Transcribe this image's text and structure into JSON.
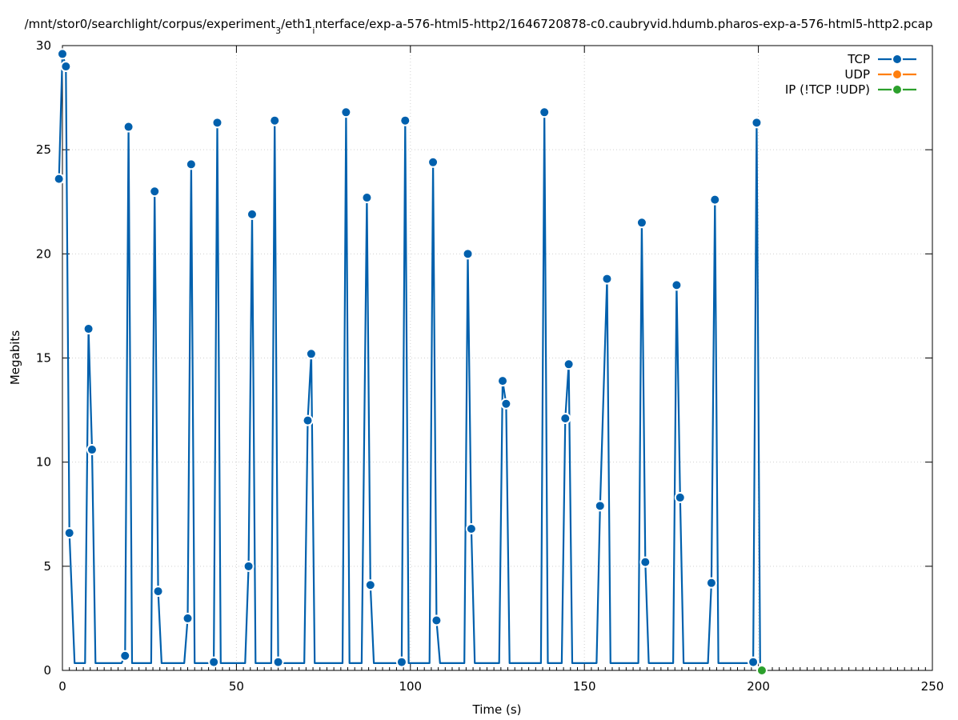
{
  "chart_data": {
    "type": "line",
    "title_parts": [
      "/mnt/stor0/searchlight/corpus/experiment",
      "3",
      "/eth1",
      "i",
      "nterface/exp-a-576-html5-http2/1646720878-c0.caubryvid.hdumb.pharos-exp-a-576-html5-http2.pcap"
    ],
    "xlabel": "Time (s)",
    "ylabel": "Megabits",
    "xlim": [
      0,
      250
    ],
    "ylim": [
      0,
      30
    ],
    "xticks": [
      0,
      50,
      100,
      150,
      200,
      250
    ],
    "yticks": [
      0,
      5,
      10,
      15,
      20,
      25,
      30
    ],
    "grid": true,
    "legend_position": "top-right",
    "series": [
      {
        "name": "TCP",
        "color": "#0060ad",
        "points": [
          [
            -1,
            23.6
          ],
          [
            0,
            29.6
          ],
          [
            1,
            29.0
          ],
          [
            2,
            6.6
          ],
          [
            3.5,
            0.35
          ],
          [
            6.5,
            0.35
          ],
          [
            7.5,
            16.4
          ],
          [
            8.5,
            10.6
          ],
          [
            9.5,
            0.35
          ],
          [
            17,
            0.35
          ],
          [
            18,
            0.7
          ],
          [
            19,
            26.1
          ],
          [
            20,
            0.35
          ],
          [
            25.5,
            0.35
          ],
          [
            26.5,
            23.0
          ],
          [
            27.5,
            3.8
          ],
          [
            28.5,
            0.35
          ],
          [
            35,
            0.35
          ],
          [
            36,
            2.5
          ],
          [
            37,
            24.3
          ],
          [
            38,
            0.35
          ],
          [
            42.5,
            0.35
          ],
          [
            43.5,
            0.4
          ],
          [
            44.5,
            26.3
          ],
          [
            45.5,
            0.35
          ],
          [
            52.5,
            0.35
          ],
          [
            53.5,
            5.0
          ],
          [
            54.5,
            21.9
          ],
          [
            55.5,
            0.35
          ],
          [
            60,
            0.35
          ],
          [
            61,
            26.4
          ],
          [
            62,
            0.4
          ],
          [
            63,
            0.35
          ],
          [
            69.5,
            0.35
          ],
          [
            70.5,
            12.0
          ],
          [
            71.5,
            15.2
          ],
          [
            72.5,
            0.35
          ],
          [
            80.5,
            0.35
          ],
          [
            81.5,
            26.8
          ],
          [
            82.5,
            0.35
          ],
          [
            86,
            0.35
          ],
          [
            87.5,
            22.7
          ],
          [
            88.5,
            4.1
          ],
          [
            89.5,
            0.35
          ],
          [
            96.5,
            0.35
          ],
          [
            97.5,
            0.4
          ],
          [
            98.5,
            26.4
          ],
          [
            99.5,
            0.35
          ],
          [
            105.5,
            0.35
          ],
          [
            106.5,
            24.4
          ],
          [
            107.5,
            2.4
          ],
          [
            108.5,
            0.35
          ],
          [
            115.5,
            0.35
          ],
          [
            116.5,
            20.0
          ],
          [
            117.5,
            6.8
          ],
          [
            118.5,
            0.35
          ],
          [
            125.5,
            0.35
          ],
          [
            126.5,
            13.9
          ],
          [
            127.5,
            12.8
          ],
          [
            128.5,
            0.35
          ],
          [
            137.5,
            0.35
          ],
          [
            138.5,
            26.8
          ],
          [
            139.5,
            0.35
          ],
          [
            143.5,
            0.35
          ],
          [
            144.5,
            12.1
          ],
          [
            145.5,
            14.7
          ],
          [
            146.5,
            0.35
          ],
          [
            153.5,
            0.35
          ],
          [
            154.5,
            7.9
          ],
          [
            156.5,
            18.8
          ],
          [
            157.5,
            0.35
          ],
          [
            165.5,
            0.35
          ],
          [
            166.5,
            21.5
          ],
          [
            167.5,
            5.2
          ],
          [
            168.5,
            0.35
          ],
          [
            175.5,
            0.35
          ],
          [
            176.5,
            18.5
          ],
          [
            177.5,
            8.3
          ],
          [
            178.5,
            0.35
          ],
          [
            185.5,
            0.35
          ],
          [
            186.5,
            4.2
          ],
          [
            187.5,
            22.6
          ],
          [
            188.5,
            0.35
          ],
          [
            197.5,
            0.35
          ],
          [
            198.5,
            0.4
          ],
          [
            199.5,
            26.3
          ],
          [
            200.5,
            0.35
          ]
        ]
      },
      {
        "name": "UDP",
        "color": "#ff7f0e",
        "points": []
      },
      {
        "name": "IP (!TCP  !UDP)",
        "color": "#2ca02c",
        "points": [
          [
            201,
            0
          ]
        ]
      }
    ]
  }
}
